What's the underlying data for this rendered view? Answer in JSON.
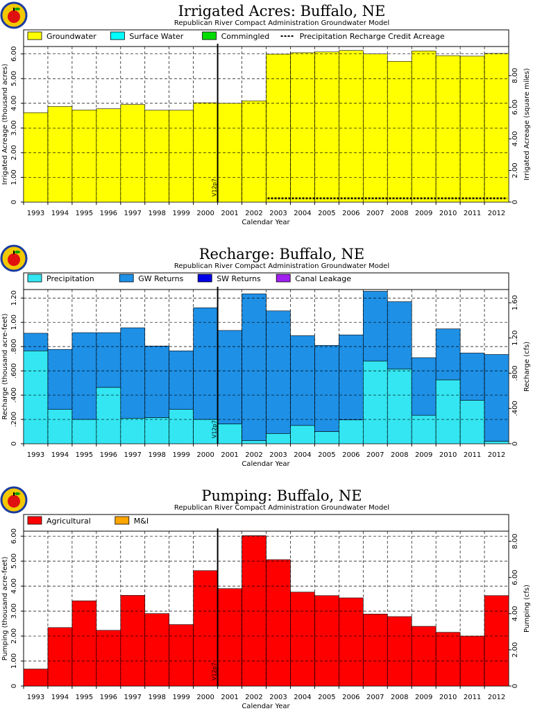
{
  "chart_data": [
    {
      "type": "bar",
      "title": "Irrigated Acres: Buffalo, NE",
      "subtitle": "Republican River Compact Administration Groundwater Model",
      "xlabel": "Calendar Year",
      "ylabel": "Irrigated Acreage (thousand acres)",
      "ylabel_right": "Irrigated Acreage (square miles)",
      "categories": [
        "1993",
        "1994",
        "1995",
        "1996",
        "1997",
        "1998",
        "1999",
        "2000",
        "2001",
        "2002",
        "2003",
        "2004",
        "2005",
        "2006",
        "2007",
        "2008",
        "2009",
        "2010",
        "2011",
        "2012"
      ],
      "ylim": [
        0,
        6.3
      ],
      "yticks": [
        "0",
        "1.00",
        "2.00",
        "3.00",
        "4.00",
        "5.00",
        "6.00"
      ],
      "ylim_right": [
        0,
        9.84
      ],
      "yticks_right": [
        "0",
        "2.00",
        "4.00",
        "6.00",
        "8.00"
      ],
      "stacked": true,
      "series": [
        {
          "name": "Groundwater",
          "color": "#ffff00",
          "values": [
            3.62,
            3.87,
            3.73,
            3.78,
            3.95,
            3.72,
            3.72,
            4.02,
            4.0,
            4.1,
            5.99,
            6.05,
            6.08,
            6.14,
            6.0,
            5.7,
            6.12,
            5.93,
            5.91,
            6.02
          ]
        },
        {
          "name": "Surface Water",
          "color": "#00ffff",
          "values": [
            0,
            0,
            0,
            0,
            0,
            0,
            0,
            0,
            0,
            0,
            0,
            0,
            0,
            0,
            0,
            0,
            0,
            0,
            0,
            0
          ]
        },
        {
          "name": "Commingled",
          "color": "#00dd00",
          "values": [
            0,
            0,
            0,
            0,
            0,
            0,
            0,
            0,
            0,
            0,
            0,
            0,
            0,
            0,
            0,
            0,
            0,
            0,
            0,
            0
          ]
        }
      ],
      "line_series": {
        "name": "Precipitation Recharge Credit Acreage",
        "style": "dashed",
        "values": [
          null,
          null,
          null,
          null,
          null,
          null,
          null,
          null,
          null,
          null,
          0.15,
          0.15,
          0.15,
          0.15,
          0.15,
          0.15,
          0.15,
          0.15,
          0.15,
          0.15
        ]
      },
      "marker": {
        "label": "V12p7",
        "year": "2000.5"
      },
      "grid": true,
      "legend_position": "top"
    },
    {
      "type": "bar",
      "title": "Recharge: Buffalo, NE",
      "subtitle": "Republican River Compact Administration Groundwater Model",
      "xlabel": "Calendar Year",
      "ylabel": "Recharge (thousand acre-feet)",
      "ylabel_right": "Recharge (cfs)",
      "categories": [
        "1993",
        "1994",
        "1995",
        "1996",
        "1997",
        "1998",
        "1999",
        "2000",
        "2001",
        "2002",
        "2003",
        "2004",
        "2005",
        "2006",
        "2007",
        "2008",
        "2009",
        "2010",
        "2011",
        "2012"
      ],
      "ylim": [
        0,
        1.27
      ],
      "yticks": [
        "0",
        ".200",
        ".400",
        ".600",
        ".800",
        "1.00",
        "1.20"
      ],
      "ylim_right": [
        0,
        1.75
      ],
      "yticks_right": [
        "0",
        ".400",
        ".800",
        "1.20",
        "1.60"
      ],
      "stacked": true,
      "series": [
        {
          "name": "Precipitation",
          "color": "#33e6f2",
          "values": [
            0.765,
            0.282,
            0.2,
            0.464,
            0.21,
            0.215,
            0.282,
            0.2,
            0.163,
            0.025,
            0.084,
            0.15,
            0.1,
            0.196,
            0.681,
            0.616,
            0.234,
            0.526,
            0.357,
            0.02
          ]
        },
        {
          "name": "GW Returns",
          "color": "#1e90e6",
          "values": [
            0.145,
            0.495,
            0.715,
            0.451,
            0.745,
            0.59,
            0.483,
            0.92,
            0.77,
            1.21,
            1.01,
            0.74,
            0.71,
            0.7,
            0.575,
            0.554,
            0.475,
            0.42,
            0.39,
            0.715
          ]
        },
        {
          "name": "SW Returns",
          "color": "#0000e6",
          "values": [
            0,
            0,
            0,
            0,
            0,
            0,
            0,
            0,
            0,
            0,
            0,
            0,
            0,
            0,
            0,
            0,
            0,
            0,
            0,
            0
          ]
        },
        {
          "name": "Canal Leakage",
          "color": "#a020f0",
          "values": [
            0,
            0,
            0,
            0,
            0,
            0,
            0,
            0,
            0,
            0,
            0,
            0,
            0,
            0,
            0,
            0,
            0,
            0,
            0,
            0
          ]
        }
      ],
      "marker": {
        "label": "V12p7",
        "year": "2000.5"
      },
      "grid": true,
      "legend_position": "top"
    },
    {
      "type": "bar",
      "title": "Pumping: Buffalo, NE",
      "subtitle": "Republican River Compact Administration Groundwater Model",
      "xlabel": "Calendar Year",
      "ylabel": "Pumping (thousand acre-feet)",
      "ylabel_right": "Pumping (cfs)",
      "categories": [
        "1993",
        "1994",
        "1995",
        "1996",
        "1997",
        "1998",
        "1999",
        "2000",
        "2001",
        "2002",
        "2003",
        "2004",
        "2005",
        "2006",
        "2007",
        "2008",
        "2009",
        "2010",
        "2011",
        "2012"
      ],
      "ylim": [
        0,
        6.2
      ],
      "yticks": [
        "0",
        "1.00",
        "2.00",
        "3.00",
        "4.00",
        "5.00",
        "6.00"
      ],
      "ylim_right": [
        0,
        8.56
      ],
      "yticks_right": [
        "0",
        "2.00",
        "4.00",
        "6.00",
        "8.00"
      ],
      "stacked": true,
      "series": [
        {
          "name": "Agricultural",
          "color": "#ff0000",
          "values": [
            0.68,
            2.34,
            3.41,
            2.23,
            3.63,
            2.9,
            2.46,
            4.62,
            3.9,
            6.02,
            5.06,
            3.76,
            3.62,
            3.53,
            2.88,
            2.78,
            2.39,
            2.15,
            2.0,
            3.62
          ]
        },
        {
          "name": "M&I",
          "color": "#ffa500",
          "values": [
            0,
            0,
            0,
            0,
            0,
            0,
            0,
            0,
            0,
            0,
            0,
            0,
            0,
            0,
            0,
            0,
            0,
            0,
            0,
            0
          ]
        }
      ],
      "marker": {
        "label": "V12p7",
        "year": "2000.5"
      },
      "grid": true,
      "legend_position": "top"
    }
  ]
}
